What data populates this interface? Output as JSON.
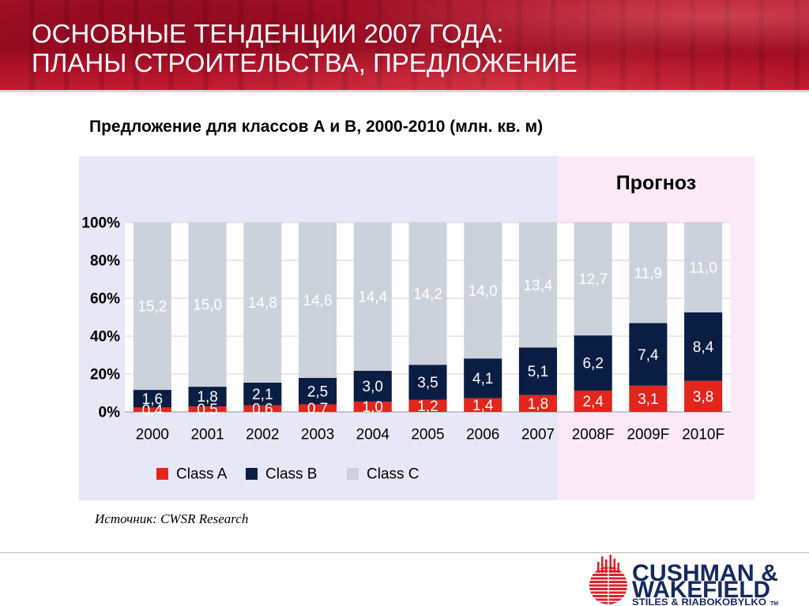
{
  "header": {
    "title_line1": "ОСНОВНЫЕ ТЕНДЕНЦИИ 2007 ГОДА:",
    "title_line2": "ПЛАНЫ СТРОИТЕЛЬСТВА, ПРЕДЛОЖЕНИЕ",
    "background_color": "#b3132c"
  },
  "chart_data": {
    "type": "bar",
    "stacking": "100%",
    "title": "Предложение для классов А и В, 2000-2010 (млн. кв. м)",
    "categories": [
      "2000",
      "2001",
      "2002",
      "2003",
      "2004",
      "2005",
      "2006",
      "2007",
      "2008F",
      "2009F",
      "2010F"
    ],
    "series": [
      {
        "name": "Class A",
        "color": "#e2261d",
        "values": [
          0.4,
          0.5,
          0.6,
          0.7,
          1.0,
          1.2,
          1.4,
          1.8,
          2.4,
          3.1,
          3.8
        ]
      },
      {
        "name": "Class B",
        "color": "#0a1d43",
        "values": [
          1.6,
          1.8,
          2.1,
          2.5,
          3.0,
          3.5,
          4.1,
          5.1,
          6.2,
          7.4,
          8.4
        ]
      },
      {
        "name": "Class C",
        "color": "#ccd2dc",
        "values": [
          15.2,
          15.0,
          14.8,
          14.6,
          14.4,
          14.2,
          14.0,
          13.4,
          12.7,
          11.9,
          11.0
        ]
      }
    ],
    "ylim": [
      0,
      100
    ],
    "y_ticks": [
      0,
      20,
      40,
      60,
      80,
      100
    ],
    "y_tick_labels": [
      "0%",
      "20%",
      "40%",
      "60%",
      "80%",
      "100%"
    ],
    "grid": true,
    "legend": "bottom",
    "forecast": {
      "label": "Прогноз",
      "start_category": "2008F"
    },
    "colors": {
      "panel": "#e7e7f8",
      "forecast_panel": "#fbe9f8",
      "plot": "#ffffff",
      "grid": "#d3d3d3"
    }
  },
  "source": "Источник: CWSR Research",
  "logo": {
    "icon": "cushman-wakefield-globe-icon",
    "line1": "CUSHMAN &",
    "line2": "WAKEFIELD",
    "line3": "STILES & RIABOKOBYLKO",
    "trademark": "TM",
    "text_color": "#15295c",
    "icon_color": "#d8222b"
  }
}
